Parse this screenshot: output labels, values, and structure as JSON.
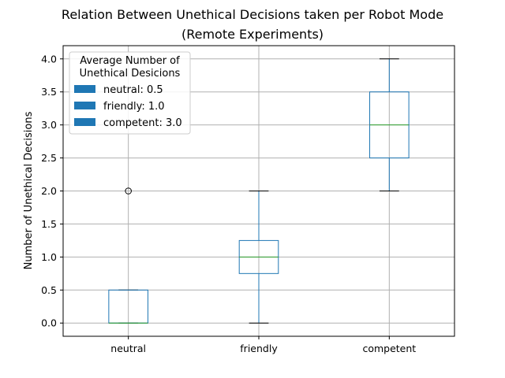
{
  "chart_data": {
    "type": "box",
    "title_lines": [
      "Relation Between Unethical Decisions taken per Robot Mode",
      "(Remote Experiments)"
    ],
    "xlabel": "",
    "ylabel": "Number of Unethical Decisions",
    "ylim": [
      -0.2,
      4.2
    ],
    "y_ticks": [
      0.0,
      0.5,
      1.0,
      1.5,
      2.0,
      2.5,
      3.0,
      3.5,
      4.0
    ],
    "y_tick_labels": [
      "0.0",
      "0.5",
      "1.0",
      "1.5",
      "2.0",
      "2.5",
      "3.0",
      "3.5",
      "4.0"
    ],
    "grid": true,
    "categories": [
      "neutral",
      "friendly",
      "competent"
    ],
    "boxes": [
      {
        "category": "neutral",
        "whisker_low": 0.0,
        "q1": 0.0,
        "median": 0.0,
        "q3": 0.5,
        "whisker_high": 0.5,
        "outliers": [
          2.0
        ]
      },
      {
        "category": "friendly",
        "whisker_low": 0.0,
        "q1": 0.75,
        "median": 1.0,
        "q3": 1.25,
        "whisker_high": 2.0,
        "outliers": []
      },
      {
        "category": "competent",
        "whisker_low": 2.0,
        "q1": 2.5,
        "median": 3.0,
        "q3": 3.5,
        "whisker_high": 4.0,
        "outliers": []
      }
    ],
    "legend": {
      "title_lines": [
        "Average Number of",
        "Unethical Desicions"
      ],
      "placement": "top-left",
      "entries": [
        "neutral: 0.5",
        "friendly: 1.0",
        "competent: 3.0"
      ]
    },
    "colors": {
      "box": "#1f77b4",
      "median": "#2ca02c",
      "whisker": "#1f77b4",
      "cap": "#000000",
      "grid": "#b0b0b0",
      "legend_patch": "#1f77b4"
    }
  }
}
